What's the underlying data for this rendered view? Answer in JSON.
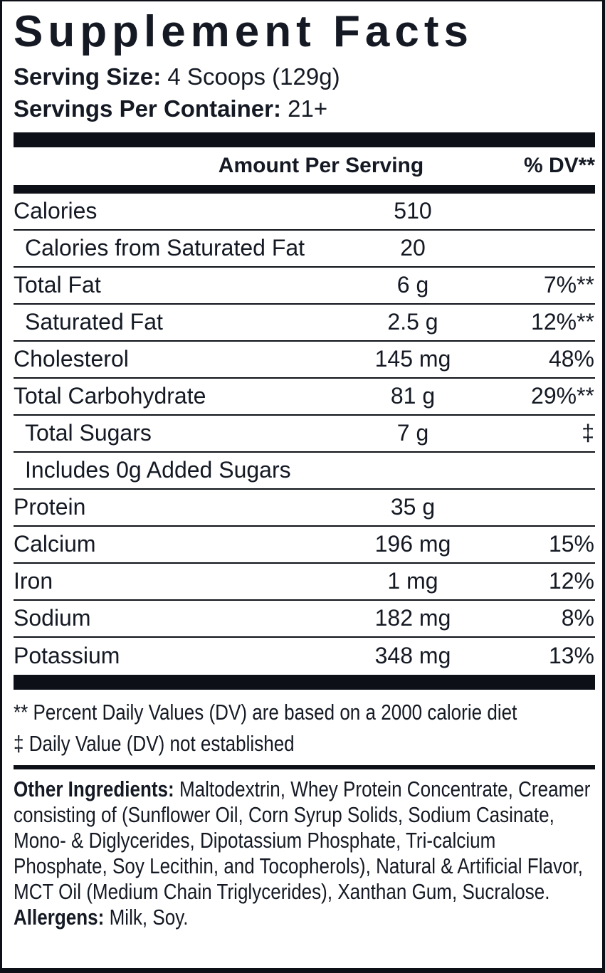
{
  "label": {
    "title": "Supplement Facts",
    "serving_size": {
      "label": "Serving Size:",
      "value": "4 Scoops (129g)"
    },
    "servings_per_container": {
      "label": "Servings Per Container:",
      "value": "21+"
    },
    "header": {
      "amount": "Amount Per Serving",
      "dv": "% DV**"
    },
    "rows": [
      {
        "name": "Calories",
        "amount": "510",
        "dv": ""
      },
      {
        "name": "Calories from Saturated Fat",
        "amount": "20",
        "dv": ""
      },
      {
        "name": "Total Fat",
        "amount": "6 g",
        "dv": "7%**"
      },
      {
        "name": "Saturated Fat",
        "amount": "2.5 g",
        "dv": "12%**"
      },
      {
        "name": "Cholesterol",
        "amount": "145 mg",
        "dv": "48%"
      },
      {
        "name": "Total Carbohydrate",
        "amount": "81 g",
        "dv": "29%**"
      },
      {
        "name": "Total Sugars",
        "amount": "7 g",
        "dv": "‡"
      },
      {
        "name": "Includes 0g Added Sugars",
        "amount": "",
        "dv": ""
      },
      {
        "name": "Protein",
        "amount": "35 g",
        "dv": ""
      },
      {
        "name": "Calcium",
        "amount": "196 mg",
        "dv": "15%"
      },
      {
        "name": "Iron",
        "amount": "1 mg",
        "dv": "12%"
      },
      {
        "name": "Sodium",
        "amount": "182 mg",
        "dv": "8%"
      },
      {
        "name": "Potassium",
        "amount": "348 mg",
        "dv": "13%"
      }
    ],
    "footnotes": {
      "percent_dv": "** Percent Daily Values (DV) are based on a 2000 calorie diet",
      "not_established": "‡ Daily Value (DV) not established"
    },
    "other_ingredients": {
      "label": "Other Ingredients:",
      "text": "Maltodextrin, Whey Protein Concentrate, Creamer consisting of (Sunflower Oil, Corn Syrup Solids, Sodium Casinate, Mono- & Diglycerides, Dipotassium Phosphate, Tri-calcium Phosphate, Soy Lecithin, and Tocopherols), Natural & Artificial Flavor, MCT Oil (Medium Chain Triglycerides), Xanthan Gum, Sucralose."
    },
    "allergens": {
      "label": "Allergens:",
      "text": "Milk, Soy."
    },
    "colors": {
      "ink": "#141923",
      "bar": "#0d1117",
      "background": "#ffffff"
    }
  }
}
